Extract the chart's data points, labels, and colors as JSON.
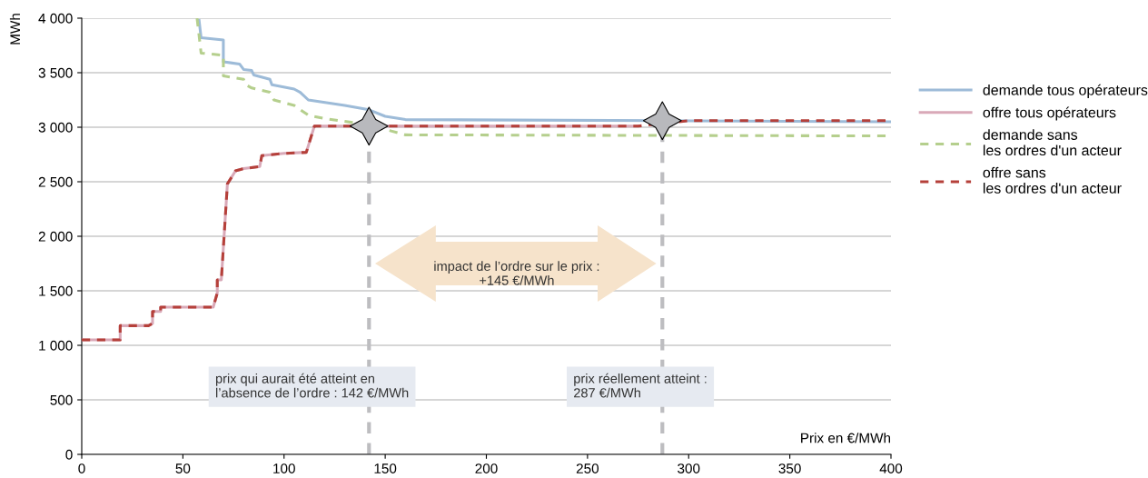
{
  "chart_data": {
    "type": "step",
    "xlabel": "Prix en €/MWh",
    "ylabel": "MWh",
    "xlim": [
      0,
      400
    ],
    "xticks": [
      0,
      50,
      100,
      150,
      200,
      250,
      300,
      350,
      400
    ],
    "ylim": [
      0,
      4000
    ],
    "yticks": [
      0,
      500,
      {
        "value": 1000,
        "label": "1 000"
      },
      {
        "value": 1500,
        "label": "1 500"
      },
      {
        "value": 2000,
        "label": "2 000"
      },
      {
        "value": 2500,
        "label": "2 500"
      },
      {
        "value": 3000,
        "label": "3 000"
      },
      {
        "value": 3500,
        "label": "3 500"
      },
      {
        "value": 4000,
        "label": "4 000"
      }
    ],
    "grid": "y",
    "legend": "right",
    "series": [
      {
        "name": "demande tous opérateurs",
        "color": "#9dbbd8",
        "line_style": "solid",
        "x": [
          58,
          59,
          70,
          70,
          78,
          80,
          84,
          85,
          93,
          94,
          105,
          108,
          112,
          130,
          142,
          150,
          160,
          287,
          400
        ],
        "values": [
          3980,
          3820,
          3800,
          3600,
          3580,
          3530,
          3520,
          3480,
          3440,
          3390,
          3350,
          3320,
          3250,
          3200,
          3160,
          3100,
          3070,
          3060,
          3050
        ]
      },
      {
        "name": "offre tous opérateurs",
        "color": "#d9a9b8",
        "line_style": "solid",
        "x": [
          0,
          19,
          19,
          33,
          35,
          35,
          39,
          39,
          65,
          67,
          67,
          69,
          72,
          76,
          80,
          88,
          89,
          100,
          111,
          115,
          275
        ],
        "values": [
          1050,
          1050,
          1180,
          1180,
          1200,
          1310,
          1310,
          1350,
          1350,
          1480,
          1600,
          1600,
          2480,
          2600,
          2620,
          2640,
          2740,
          2760,
          2770,
          3010,
          3010
        ]
      },
      {
        "name": "demande sans\nles ordres d'un acteur",
        "color": "#b5cf8d",
        "line_style": "dashed",
        "x": [
          57,
          59,
          70,
          70,
          80,
          81,
          84,
          93,
          95,
          105,
          112,
          120,
          135,
          150,
          160,
          400
        ],
        "values": [
          4000,
          3680,
          3660,
          3470,
          3440,
          3390,
          3360,
          3320,
          3250,
          3200,
          3110,
          3080,
          3040,
          2980,
          2930,
          2920
        ]
      },
      {
        "name": "offre sans\nles ordres d'un acteur",
        "color": "#b5403a",
        "line_style": "dashed",
        "x": [
          0,
          19,
          19,
          33,
          35,
          35,
          39,
          39,
          65,
          67,
          67,
          69,
          72,
          76,
          80,
          88,
          89,
          100,
          111,
          115,
          275,
          300,
          400
        ],
        "values": [
          1050,
          1050,
          1180,
          1180,
          1200,
          1310,
          1310,
          1350,
          1350,
          1480,
          1600,
          1600,
          2480,
          2600,
          2620,
          2640,
          2740,
          2760,
          2770,
          3010,
          3010,
          3060,
          3060
        ]
      },
      {
        "type": "scatter",
        "marker": "star",
        "color": "#b8b9bd",
        "x": [
          142,
          287
        ],
        "values": [
          3010,
          3060
        ]
      }
    ],
    "ref_lines": [
      {
        "axis": "x",
        "value": 142,
        "color": "#bdbdc0",
        "line_style": "dashed"
      },
      {
        "axis": "x",
        "value": 287,
        "color": "#bdbdc0",
        "line_style": "dashed"
      }
    ],
    "annotations": [
      "impact de l’ordre sur le prix :\n+145 €/MWh",
      "prix qui aurait été atteint en\nl’absence de l’ordre : 142 €/MWh",
      "prix réellement atteint :\n287 €/MWh"
    ]
  }
}
